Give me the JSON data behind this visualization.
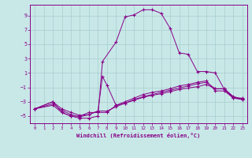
{
  "xlabel": "Windchill (Refroidissement éolien,°C)",
  "xlim": [
    -0.5,
    23.5
  ],
  "ylim": [
    -6.0,
    10.5
  ],
  "yticks": [
    -5,
    -3,
    -1,
    1,
    3,
    5,
    7,
    9
  ],
  "xticks": [
    0,
    1,
    2,
    3,
    4,
    5,
    6,
    7,
    8,
    9,
    10,
    11,
    12,
    13,
    14,
    15,
    16,
    17,
    18,
    19,
    20,
    21,
    22,
    23
  ],
  "bg_color": "#c8e8e8",
  "line_color": "#880088",
  "grid_color": "#a8cccc",
  "line1": {
    "x": [
      0,
      2,
      3,
      4,
      5,
      6,
      7,
      7.5,
      9,
      10,
      11,
      12,
      13,
      14,
      15,
      16,
      17,
      18,
      19,
      20,
      21,
      22,
      23
    ],
    "y": [
      -4.0,
      -3.0,
      -4.5,
      -5.0,
      -5.3,
      -5.3,
      -5.0,
      2.6,
      5.3,
      8.8,
      9.1,
      9.8,
      9.8,
      9.3,
      7.2,
      3.8,
      3.6,
      1.2,
      1.2,
      1.0,
      -1.3,
      -2.5,
      -2.5
    ]
  },
  "line2": {
    "x": [
      0,
      2,
      3,
      4,
      5,
      6,
      7,
      8,
      9,
      10,
      11,
      12,
      13,
      14,
      15,
      16,
      17,
      18,
      19,
      20,
      21,
      22,
      23
    ],
    "y": [
      -4.0,
      -3.5,
      -4.5,
      -5.0,
      -5.0,
      -4.5,
      -4.5,
      -4.5,
      -3.5,
      -3.0,
      -2.5,
      -2.0,
      -1.7,
      -1.5,
      -1.2,
      -0.8,
      -0.6,
      -0.3,
      -0.1,
      -1.5,
      -1.5,
      -2.5,
      -2.7
    ]
  },
  "line3": {
    "x": [
      0,
      2,
      3,
      4,
      5,
      6,
      7,
      8,
      9,
      10,
      11,
      12,
      13,
      14,
      15,
      16,
      17,
      18,
      19,
      20,
      21,
      22,
      23
    ],
    "y": [
      -4.0,
      -3.3,
      -4.2,
      -4.8,
      -5.1,
      -4.8,
      -4.3,
      -4.3,
      -3.7,
      -3.2,
      -2.8,
      -2.4,
      -2.1,
      -1.9,
      -1.6,
      -1.3,
      -1.1,
      -0.9,
      -0.6,
      -1.2,
      -1.2,
      -2.3,
      -2.6
    ]
  },
  "line4": {
    "x": [
      0,
      2,
      3,
      4,
      5,
      6,
      7,
      7.5,
      8,
      9,
      10,
      11,
      12,
      13,
      14,
      15,
      16,
      17,
      18,
      19,
      20,
      21,
      22,
      23
    ],
    "y": [
      -4.0,
      -3.0,
      -4.0,
      -4.5,
      -4.9,
      -4.8,
      -4.3,
      0.5,
      -0.7,
      -3.5,
      -3.2,
      -2.7,
      -2.3,
      -2.0,
      -1.7,
      -1.4,
      -1.1,
      -0.8,
      -0.5,
      -0.3,
      -1.2,
      -1.2,
      -2.4,
      -2.7
    ]
  }
}
